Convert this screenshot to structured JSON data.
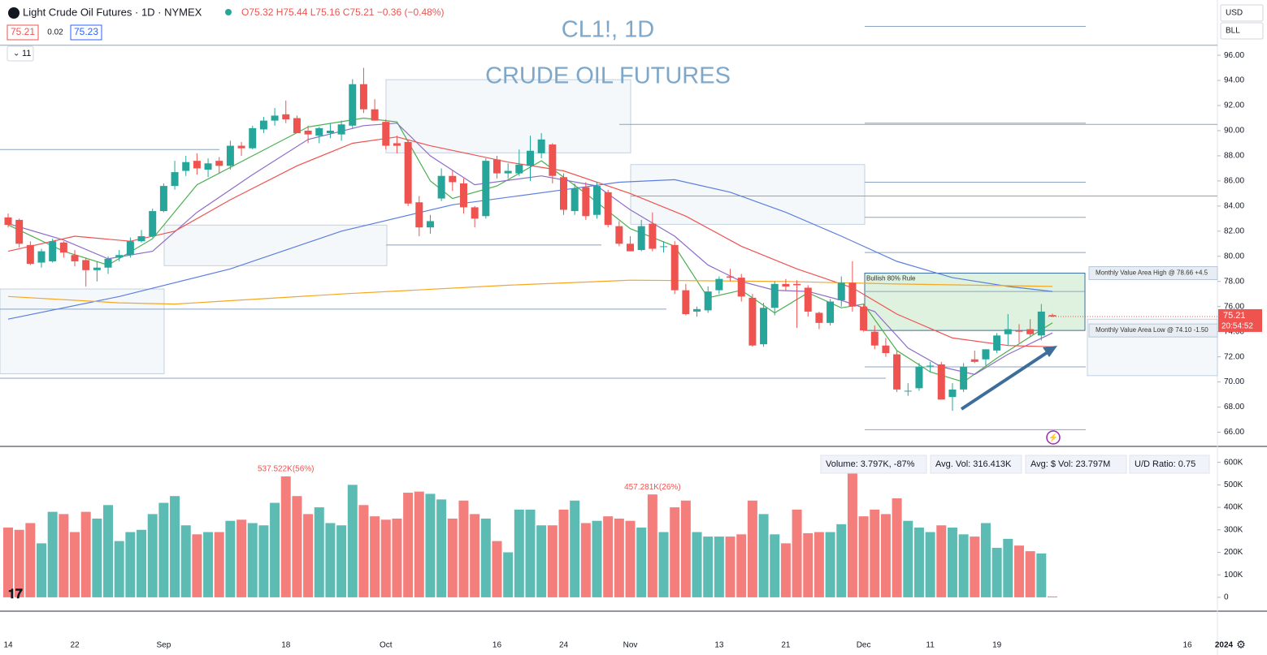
{
  "chart_data": {
    "type": "candlestick",
    "header": {
      "symbol": "Light Crude Oil Futures · 1D · NYMEX",
      "ohlc": "O75.32 H75.44 L75.16 C75.21 −0.36 (−0.48%)",
      "bid": "75.21",
      "spread": "0.02",
      "ask": "75.23",
      "indicators": "11",
      "currency": "USD",
      "unit": "BLL"
    },
    "title": "CL1!, 1D",
    "subtitle": "CRUDE OIL FUTURES",
    "categories": [
      "14",
      null,
      null,
      null,
      null,
      null,
      "22",
      null,
      null,
      null,
      null,
      null,
      null,
      null,
      "Sep",
      null,
      null,
      null,
      null,
      null,
      null,
      null,
      null,
      null,
      null,
      "18",
      null,
      null,
      null,
      null,
      null,
      null,
      null,
      null,
      "Oct",
      null,
      null,
      null,
      null,
      null,
      null,
      null,
      null,
      null,
      "16",
      null,
      null,
      null,
      null,
      null,
      "24",
      null,
      null,
      null,
      null,
      null,
      "Nov",
      null,
      null,
      null,
      null,
      null,
      null,
      null,
      "13",
      null,
      null,
      null,
      null,
      null,
      "21",
      null,
      null,
      null,
      null,
      null,
      null,
      "Dec",
      null,
      null,
      null,
      null,
      null,
      "11",
      null,
      null,
      null,
      null,
      null,
      "19",
      null,
      null,
      null,
      null,
      null
    ],
    "future_date_labels": [
      "16",
      "2024"
    ],
    "open": [
      83.1,
      82.9,
      80.9,
      79.5,
      79.6,
      81.1,
      80.1,
      79.7,
      78.9,
      79.1,
      79.9,
      80.1,
      81.2,
      81.6,
      83.6,
      85.6,
      86.8,
      87.6,
      86.9,
      87.6,
      87.2,
      88.8,
      88.6,
      90.1,
      90.8,
      91.3,
      91.0,
      90.0,
      89.6,
      89.8,
      89.7,
      90.4,
      93.7,
      91.7,
      90.7,
      89.0,
      89.1,
      84.3,
      82.3,
      84.6,
      86.4,
      85.8,
      83.9,
      83.2,
      87.7,
      86.6,
      86.6,
      87.2,
      88.2,
      88.9,
      86.3,
      83.6,
      85.5,
      83.3,
      85.1,
      82.4,
      81.0,
      80.5,
      82.6,
      80.8,
      80.9,
      77.3,
      75.6,
      75.7,
      77.3,
      78.4,
      78.3,
      76.7,
      73.0,
      75.9,
      77.8,
      77.8,
      77.5,
      75.5,
      74.7,
      76.5,
      77.9,
      76.0,
      74.0,
      72.9,
      72.2,
      69.3,
      69.5,
      71.3,
      71.4,
      68.8,
      69.4,
      71.8,
      71.8,
      72.5,
      73.8,
      74.1,
      74.2,
      73.7,
      75.32
    ],
    "high": [
      83.4,
      83.0,
      81.2,
      80.6,
      81.4,
      81.2,
      80.5,
      79.9,
      79.6,
      80.0,
      80.5,
      81.5,
      82.1,
      83.8,
      85.8,
      87.6,
      88.0,
      88.2,
      87.8,
      87.9,
      89.2,
      89.1,
      90.4,
      91.1,
      91.8,
      92.4,
      91.2,
      90.4,
      90.3,
      90.6,
      90.8,
      94.1,
      95.0,
      92.5,
      90.9,
      89.6,
      89.3,
      84.8,
      83.3,
      87.0,
      86.8,
      86.2,
      84.0,
      87.8,
      88.0,
      87.4,
      88.5,
      89.6,
      89.8,
      89.0,
      86.6,
      85.8,
      85.9,
      85.9,
      85.3,
      82.8,
      81.6,
      82.9,
      83.5,
      81.2,
      81.2,
      77.8,
      76.0,
      77.6,
      78.4,
      79.0,
      78.6,
      77.0,
      76.3,
      78.0,
      78.2,
      78.1,
      77.7,
      75.6,
      76.6,
      78.4,
      79.6,
      76.2,
      74.5,
      73.5,
      72.5,
      69.9,
      71.5,
      71.6,
      71.6,
      69.9,
      71.5,
      72.5,
      72.6,
      73.9,
      75.4,
      74.6,
      75.0,
      76.2,
      75.44
    ],
    "low": [
      82.3,
      80.7,
      79.3,
      79.1,
      79.5,
      79.9,
      79.2,
      77.6,
      78.0,
      78.6,
      79.6,
      79.9,
      81.1,
      81.5,
      83.5,
      85.3,
      86.4,
      86.5,
      86.3,
      86.6,
      86.9,
      88.0,
      88.5,
      89.8,
      90.4,
      90.6,
      89.8,
      89.0,
      89.0,
      89.4,
      89.2,
      90.2,
      91.4,
      90.8,
      88.5,
      88.2,
      84.0,
      81.6,
      81.8,
      84.4,
      85.2,
      83.4,
      82.3,
      83.0,
      86.2,
      86.2,
      86.4,
      86.0,
      87.8,
      85.8,
      83.3,
      83.3,
      82.9,
      83.0,
      82.3,
      80.8,
      80.4,
      80.4,
      80.4,
      80.3,
      77.0,
      75.3,
      75.2,
      75.5,
      77.0,
      78.0,
      76.4,
      72.8,
      72.8,
      75.3,
      77.3,
      74.3,
      75.2,
      74.2,
      74.5,
      76.0,
      75.6,
      74.0,
      72.6,
      72.0,
      69.2,
      68.9,
      69.3,
      70.8,
      68.6,
      67.7,
      69.2,
      71.5,
      71.3,
      72.3,
      72.9,
      73.1,
      73.6,
      73.3,
      75.16
    ],
    "close": [
      82.5,
      81.0,
      79.4,
      80.4,
      81.2,
      80.3,
      79.6,
      78.9,
      79.1,
      79.8,
      80.1,
      81.2,
      81.6,
      83.6,
      85.6,
      86.7,
      87.5,
      87.0,
      87.4,
      87.2,
      88.8,
      88.6,
      90.2,
      90.8,
      91.2,
      90.9,
      89.8,
      89.7,
      90.2,
      90.0,
      90.5,
      93.7,
      91.7,
      90.8,
      88.8,
      88.8,
      84.2,
      82.3,
      82.8,
      86.4,
      85.9,
      83.9,
      83.0,
      87.6,
      86.6,
      86.8,
      87.3,
      88.4,
      89.3,
      86.4,
      83.7,
      85.4,
      83.2,
      85.6,
      82.5,
      81.0,
      80.4,
      82.4,
      80.6,
      80.8,
      77.3,
      75.4,
      75.8,
      77.2,
      78.2,
      78.3,
      76.8,
      72.9,
      75.9,
      77.8,
      77.6,
      77.7,
      75.6,
      74.7,
      76.4,
      77.9,
      76.0,
      74.1,
      72.9,
      72.3,
      69.4,
      69.3,
      71.2,
      71.3,
      68.6,
      69.4,
      71.2,
      71.6,
      72.6,
      73.7,
      74.2,
      74.0,
      73.8,
      75.6,
      75.21
    ],
    "up_color": "#26a69a",
    "down_color": "#ef5350",
    "ylim": [
      65,
      100.4
    ],
    "yticks": [
      {
        "value": 66,
        "label": "66.00"
      },
      {
        "value": 68,
        "label": "68.00"
      },
      {
        "value": 70,
        "label": "70.00"
      },
      {
        "value": 72,
        "label": "72.00"
      },
      {
        "value": 74,
        "label": "74.00"
      },
      {
        "value": 76,
        "label": "76.00"
      },
      {
        "value": 78,
        "label": "78.00"
      },
      {
        "value": 80,
        "label": "80.00"
      },
      {
        "value": 82,
        "label": "82.00"
      },
      {
        "value": 84,
        "label": "84.00"
      },
      {
        "value": 86,
        "label": "86.00"
      },
      {
        "value": 88,
        "label": "88.00"
      },
      {
        "value": 90,
        "label": "90.00"
      },
      {
        "value": 92,
        "label": "92.00"
      },
      {
        "value": 94,
        "label": "94.00"
      },
      {
        "value": 96,
        "label": "96.00"
      }
    ],
    "last_price": {
      "value": 75.21,
      "label": "75.21",
      "countdown": "20:54:52"
    },
    "moving_averages": [
      {
        "color": "#4caf50",
        "x": [
          0,
          5,
          9,
          13,
          17,
          22,
          27,
          32,
          35,
          38,
          40,
          44,
          48,
          52,
          56,
          60,
          63,
          66,
          69,
          72,
          75,
          77,
          80,
          83,
          86,
          89,
          92,
          94
        ],
        "values": [
          82.5,
          80.4,
          79.3,
          81.4,
          85.7,
          88.0,
          90.3,
          91.0,
          90.7,
          86.0,
          84.6,
          85.6,
          87.6,
          85.0,
          82.2,
          80.8,
          76.7,
          77.3,
          75.5,
          77.1,
          75.9,
          76.2,
          72.5,
          70.8,
          70.0,
          71.9,
          73.6,
          74.7
        ]
      },
      {
        "color": "#8e6cc9",
        "x": [
          0,
          5,
          9,
          13,
          17,
          22,
          27,
          32,
          35,
          38,
          42,
          48,
          53,
          56,
          60,
          63,
          66,
          69,
          72,
          75,
          78,
          81,
          84,
          87,
          90,
          94
        ],
        "values": [
          82.6,
          81.3,
          79.8,
          80.4,
          83.5,
          86.5,
          89.3,
          90.4,
          90.6,
          88.0,
          85.7,
          86.4,
          85.6,
          83.7,
          81.6,
          79.3,
          78.0,
          77.3,
          77.2,
          76.5,
          75.6,
          72.7,
          71.2,
          70.6,
          72.2,
          73.9
        ]
      },
      {
        "color": "#ef5350",
        "x": [
          0,
          6,
          11,
          15,
          20,
          26,
          31,
          35,
          38,
          45,
          50,
          56,
          61,
          66,
          71,
          76,
          80,
          85,
          90,
          94
        ],
        "values": [
          80.4,
          81.6,
          81.2,
          82.0,
          84.5,
          87.2,
          89.0,
          89.5,
          88.8,
          87.5,
          86.8,
          85.0,
          83.2,
          80.8,
          79.0,
          77.5,
          75.4,
          73.5,
          72.9,
          72.8
        ]
      },
      {
        "color": "#5b7fe0",
        "x": [
          0,
          10,
          20,
          30,
          40,
          50,
          55,
          60,
          65,
          70,
          75,
          80,
          85,
          90,
          94
        ],
        "values": [
          75.0,
          76.8,
          79.0,
          82.0,
          84.1,
          85.3,
          85.9,
          86.1,
          85.1,
          83.5,
          81.6,
          79.6,
          78.3,
          77.6,
          77.2
        ]
      },
      {
        "color": "#f5a623",
        "x": [
          0,
          10,
          15,
          30,
          45,
          56,
          70,
          80,
          94
        ],
        "values": [
          76.8,
          76.3,
          76.2,
          77.0,
          77.7,
          78.1,
          78.0,
          77.8,
          77.6
        ]
      }
    ],
    "levels": [
      98.3,
      96.8,
      90.6,
      90.5,
      88.5,
      85.9,
      84.8,
      83.1,
      80.9,
      80.3,
      77.2,
      75.8,
      71.2,
      70.3,
      66.2
    ],
    "zones": [
      {
        "top": 94.06,
        "bottom": 88.24
      },
      {
        "top": 87.3,
        "bottom": 82.55
      },
      {
        "top": 82.49,
        "bottom": 79.26
      },
      {
        "top": 77.4,
        "bottom": 70.66
      },
      {
        "top": 75.0,
        "bottom": 70.5
      }
    ],
    "value_area": {
      "top": 78.66,
      "bottom": 74.1,
      "rule": "Bullish 80% Rule",
      "high_label": "Monthly Value Area High @ 78.66  +4.5",
      "low_label": "Monthly Value Area Low @ 74.10  -1.50"
    },
    "volume": [
      310,
      300,
      330,
      240,
      380,
      370,
      290,
      380,
      350,
      410,
      250,
      290,
      300,
      370,
      420,
      450,
      320,
      280,
      290,
      290,
      340,
      345,
      330,
      320,
      420,
      537.522,
      450,
      370,
      400,
      330,
      320,
      500,
      410,
      360,
      345,
      350,
      465,
      470,
      460,
      435,
      350,
      430,
      370,
      350,
      250,
      200,
      390,
      390,
      320,
      320,
      390,
      430,
      330,
      340,
      360,
      350,
      340,
      310,
      457.281,
      290,
      400,
      430,
      290,
      270,
      270,
      270,
      280,
      430,
      370,
      280,
      240,
      390,
      285,
      290,
      290,
      325,
      560,
      360,
      390,
      370,
      440,
      340,
      310,
      290,
      320,
      310,
      280,
      270,
      330,
      220,
      260,
      230,
      205,
      195,
      3.797
    ],
    "volume_value_labels": {
      "25": "537.522K(56%)",
      "58": "457.281K(26%)"
    },
    "y2lim": [
      -58,
      660
    ],
    "y2ticks": [
      0,
      {
        "value": 100,
        "label": "100K"
      },
      {
        "value": 200,
        "label": "200K"
      },
      {
        "value": 300,
        "label": "300K"
      },
      {
        "value": 400,
        "label": "400K"
      },
      {
        "value": 500,
        "label": "500K"
      },
      {
        "value": 600,
        "label": "600K"
      }
    ],
    "volume_stats": [
      "Volume: 3.797K, -87%",
      "Avg. Vol: 316.413K",
      "Avg: $ Vol: 23.797M",
      "U/D Ratio: 0.75"
    ]
  }
}
